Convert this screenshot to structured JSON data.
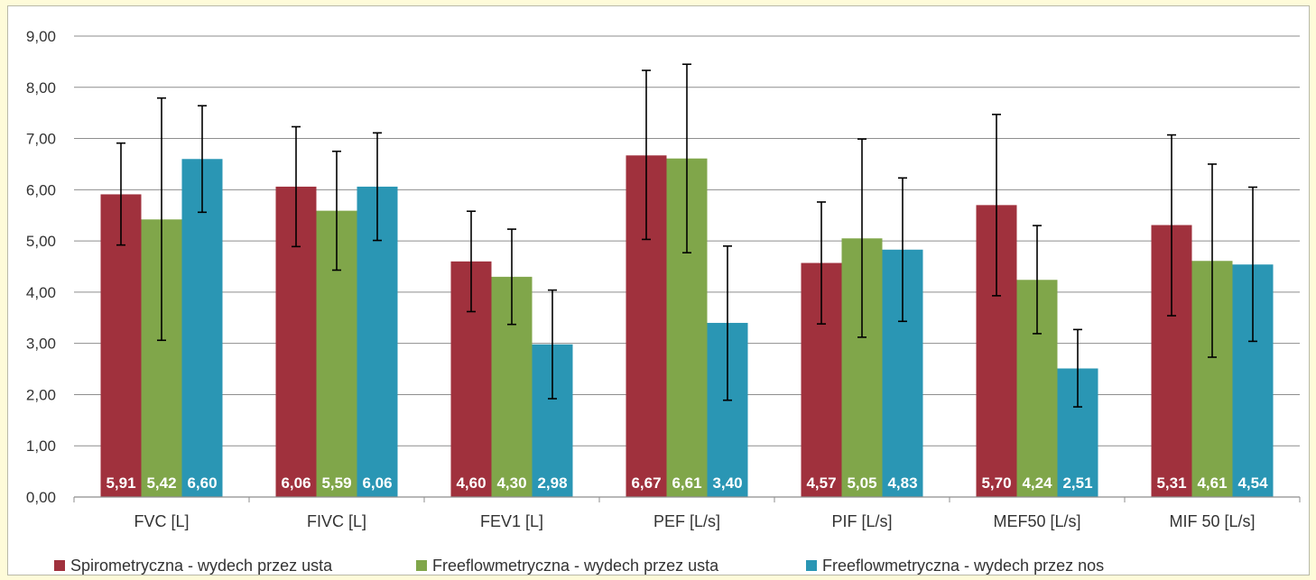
{
  "chart_data": {
    "type": "bar",
    "categories": [
      "FVC [L]",
      "FIVC [L]",
      "FEV1 [L]",
      "PEF [L/s]",
      "PIF [L/s]",
      "MEF50 [L/s]",
      "MIF 50 [L/s]"
    ],
    "series": [
      {
        "name": "Spirometryczna - wydech przez usta",
        "color": "#a0313d",
        "values": [
          5.91,
          6.06,
          4.6,
          6.67,
          4.57,
          5.7,
          5.31
        ],
        "labels": [
          "5,91",
          "6,06",
          "4,60",
          "6,67",
          "4,57",
          "5,70",
          "5,31"
        ],
        "error_low": [
          4.92,
          4.89,
          3.62,
          5.03,
          3.38,
          3.93,
          3.54
        ],
        "error_high": [
          6.91,
          7.23,
          5.58,
          8.33,
          5.76,
          7.47,
          7.07
        ]
      },
      {
        "name": "Freeflowmetryczna - wydech przez usta",
        "color": "#80a64a",
        "values": [
          5.42,
          5.59,
          4.3,
          6.61,
          5.05,
          4.24,
          4.61
        ],
        "labels": [
          "5,42",
          "5,59",
          "4,30",
          "6,61",
          "5,05",
          "4,24",
          "4,61"
        ],
        "error_low": [
          3.06,
          4.43,
          3.37,
          4.77,
          3.12,
          3.19,
          2.73
        ],
        "error_high": [
          7.79,
          6.75,
          5.23,
          8.45,
          6.99,
          5.3,
          6.5
        ]
      },
      {
        "name": "Freeflowmetryczna - wydech przez nos",
        "color": "#2a96b4",
        "values": [
          6.6,
          6.06,
          2.98,
          3.4,
          4.83,
          2.51,
          4.54
        ],
        "labels": [
          "6,60",
          "6,06",
          "2,98",
          "3,40",
          "4,83",
          "2,51",
          "4,54"
        ],
        "error_low": [
          5.56,
          5.01,
          1.92,
          1.89,
          3.43,
          1.76,
          3.04
        ],
        "error_high": [
          7.64,
          7.11,
          4.04,
          4.9,
          6.23,
          3.27,
          6.05
        ]
      }
    ],
    "ylim": [
      0,
      9
    ],
    "y_ticks": [
      "0,00",
      "1,00",
      "2,00",
      "3,00",
      "4,00",
      "5,00",
      "6,00",
      "7,00",
      "8,00",
      "9,00"
    ],
    "grid": true,
    "legend_position": "bottom",
    "title": "",
    "xlabel": "",
    "ylabel": ""
  }
}
